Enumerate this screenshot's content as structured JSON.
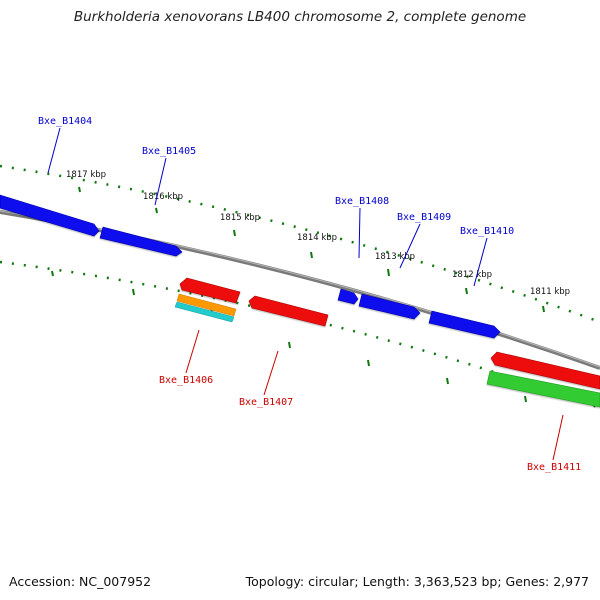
{
  "title": "Burkholderia xenovorans LB400 chromosome 2, complete genome",
  "accession": "Accession: NC_007952",
  "stats": "Topology: circular; Length: 3,363,523 bp; Genes: 2,977",
  "colors": {
    "forward_gene": "#1111ee",
    "reverse_gene": "#ee1111",
    "green_feature": "#33cc33",
    "orange_feature": "#ff9900",
    "cyan_feature": "#22cccc",
    "backbone": "#808080",
    "tick": "#117711",
    "label_forward": "#0000cc",
    "label_reverse": "#cc0000"
  },
  "ruler": [
    "1817 kbp",
    "1816 kbp",
    "1815 kbp",
    "1814 kbp",
    "1813 kbp",
    "1812 kbp",
    "1811 kbp"
  ],
  "genes": [
    {
      "label": "Bxe_B1404",
      "strand": "forward"
    },
    {
      "label": "Bxe_B1405",
      "strand": "forward"
    },
    {
      "label": "Bxe_B1408",
      "strand": "forward"
    },
    {
      "label": "Bxe_B1409",
      "strand": "forward"
    },
    {
      "label": "Bxe_B1410",
      "strand": "forward"
    },
    {
      "label": "Bxe_B1406",
      "strand": "reverse"
    },
    {
      "label": "Bxe_B1407",
      "strand": "reverse"
    },
    {
      "label": "Bxe_B1411",
      "strand": "reverse"
    }
  ]
}
